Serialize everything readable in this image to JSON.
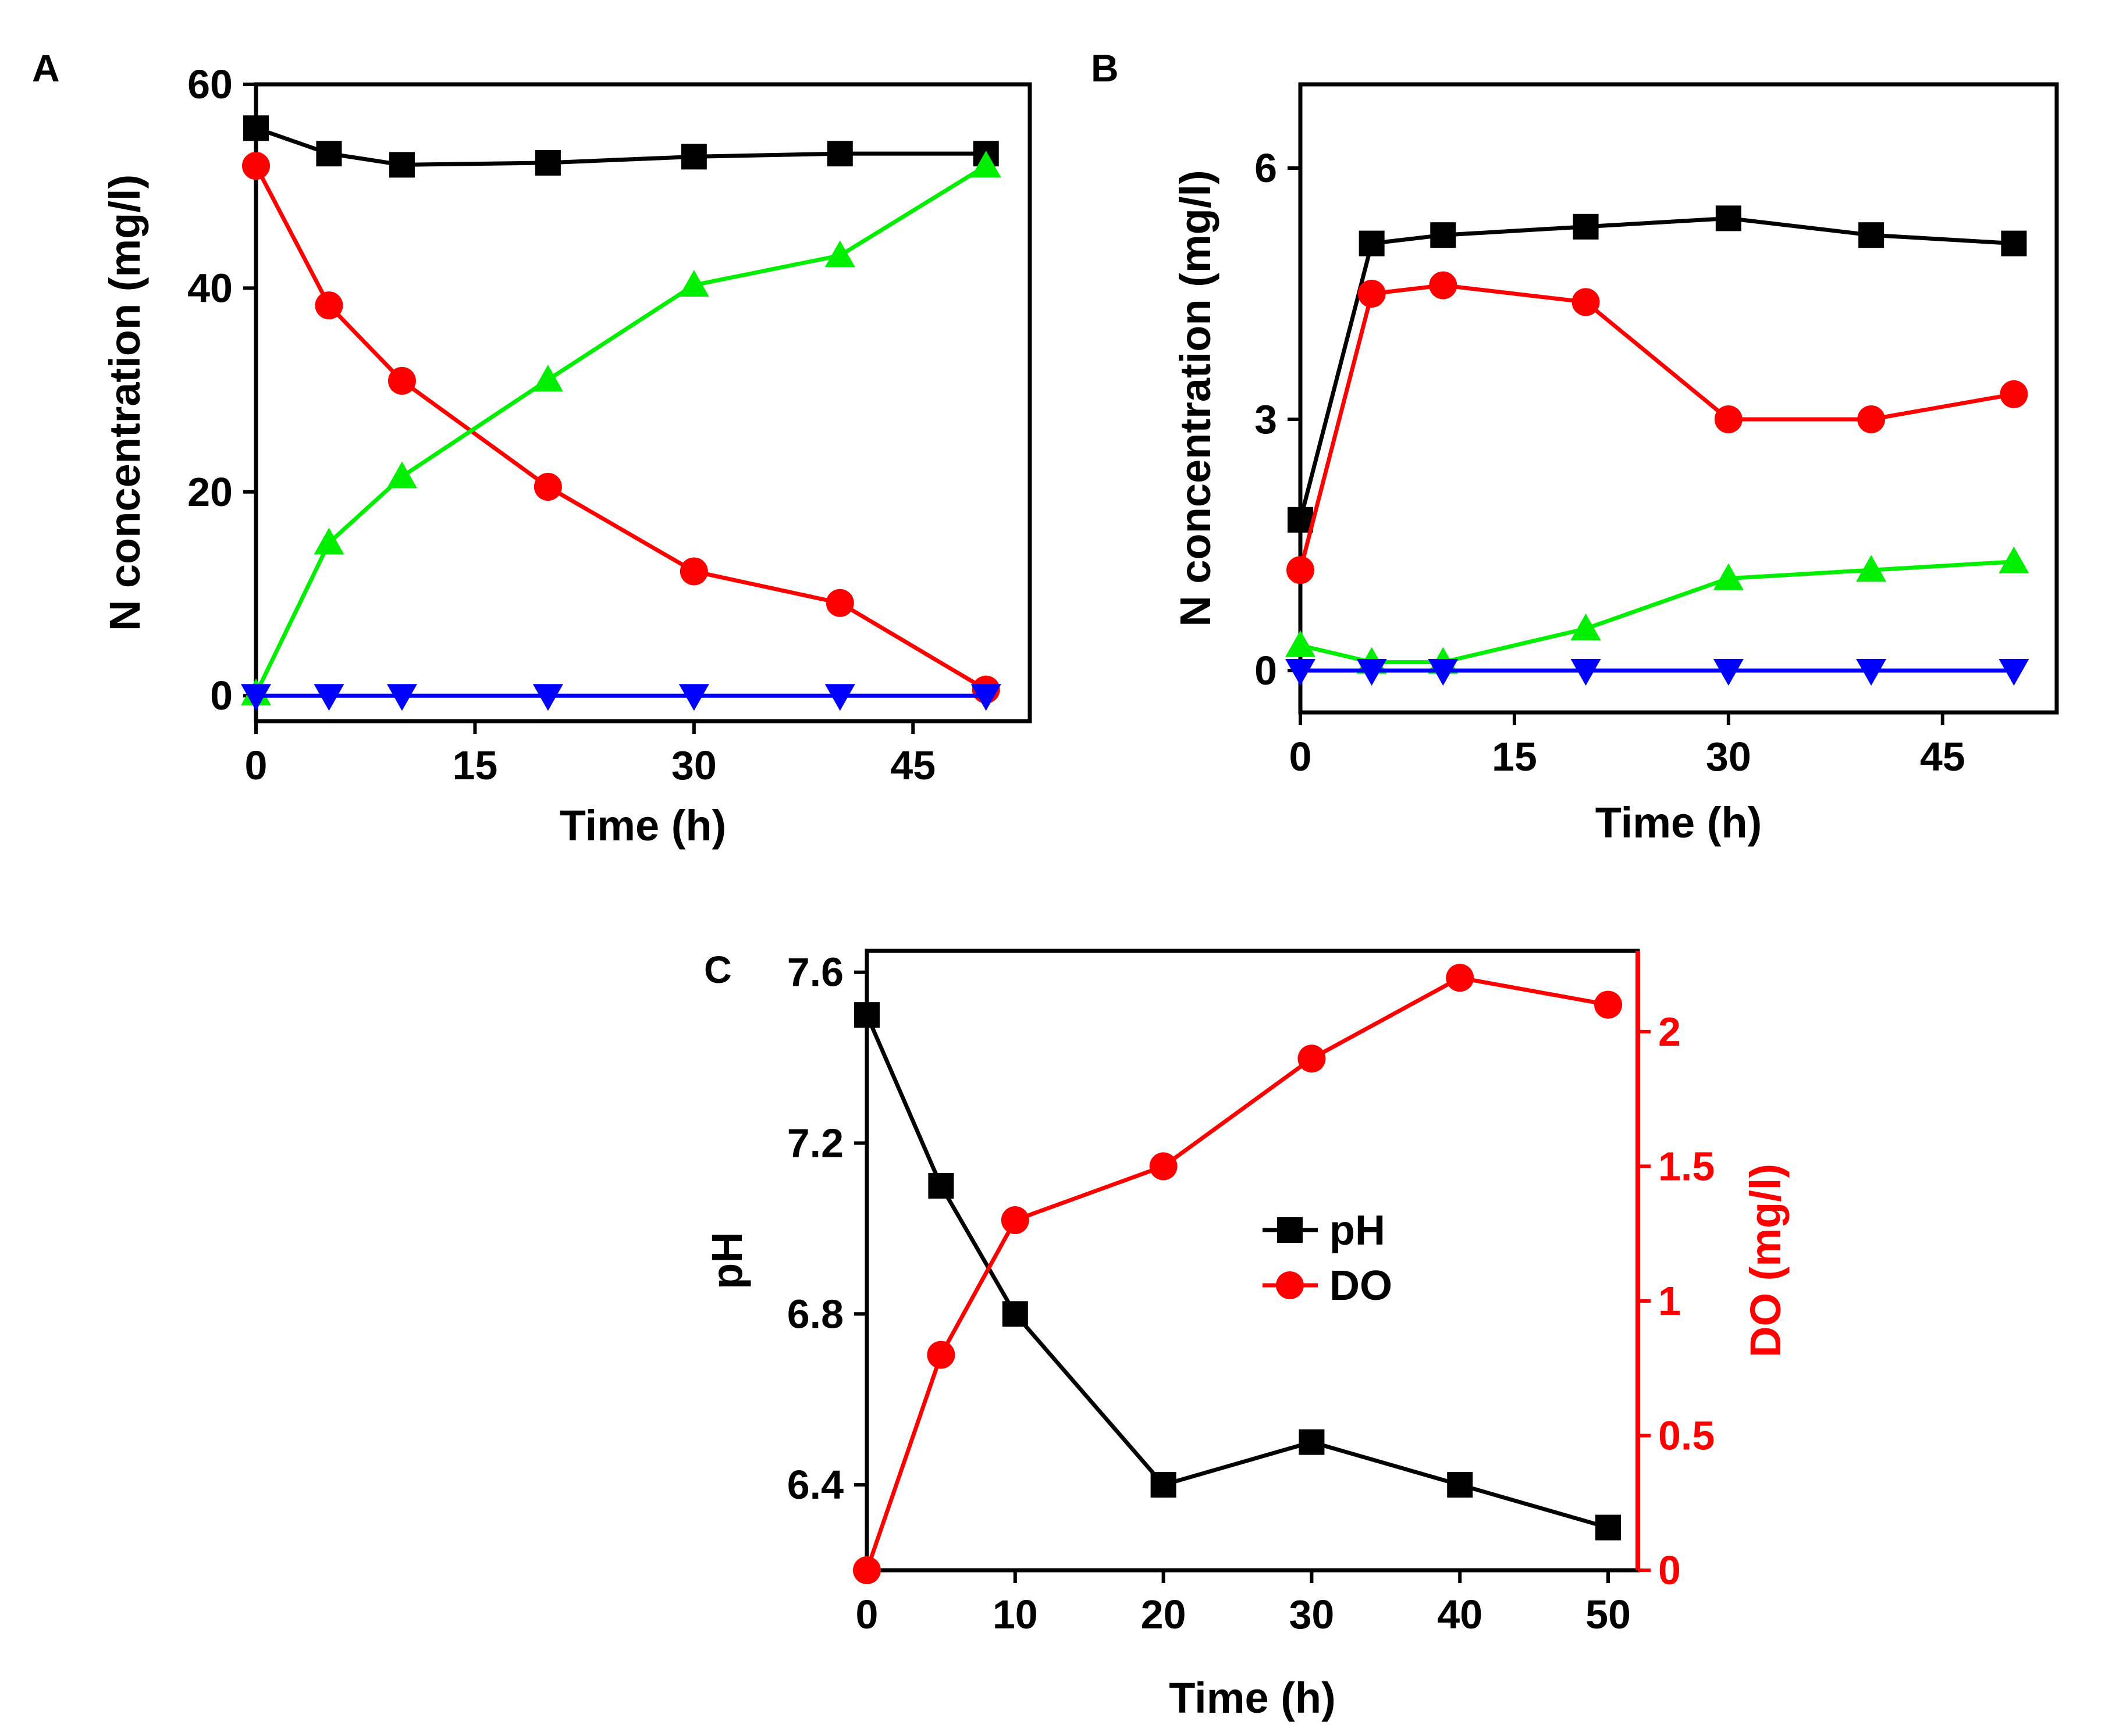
{
  "chart_data": [
    {
      "panel_label": "A",
      "type": "line",
      "xlabel": "Time (h)",
      "ylabel": "N concentration (mg/l)",
      "xlim": [
        0,
        53
      ],
      "ylim": [
        -2.5,
        60
      ],
      "xticks": [
        "0",
        "15",
        "30",
        "45"
      ],
      "yticks": [
        "0",
        "20",
        "40",
        "60"
      ],
      "x": [
        0,
        5,
        10,
        20,
        30,
        40,
        50
      ],
      "series": [
        {
          "marker": "square",
          "color": "#000000",
          "values": [
            55.7,
            53.2,
            52.1,
            52.3,
            52.9,
            53.2,
            53.2
          ]
        },
        {
          "marker": "circle",
          "color": "#ff0000",
          "values": [
            52.0,
            38.3,
            30.9,
            20.5,
            12.2,
            9.1,
            0.6
          ]
        },
        {
          "marker": "triangle-up",
          "color": "#00ee00",
          "values": [
            0.2,
            15.0,
            21.5,
            31.0,
            40.3,
            43.2,
            52.0
          ]
        },
        {
          "marker": "triangle-down",
          "color": "#0000ff",
          "values": [
            0,
            0,
            0,
            0,
            0,
            0,
            0
          ]
        }
      ],
      "grid": false
    },
    {
      "panel_label": "B",
      "type": "line",
      "xlabel": "Time (h)",
      "ylabel": "N concentration (mg/l)",
      "xlim": [
        0,
        53
      ],
      "ylim": [
        -0.5,
        7
      ],
      "xticks": [
        "0",
        "15",
        "30",
        "45"
      ],
      "yticks": [
        "0",
        "3",
        "6"
      ],
      "x": [
        0,
        5,
        10,
        20,
        30,
        40,
        50
      ],
      "series": [
        {
          "marker": "square",
          "color": "#000000",
          "values": [
            1.8,
            5.1,
            5.2,
            5.3,
            5.4,
            5.2,
            5.1
          ]
        },
        {
          "marker": "circle",
          "color": "#ff0000",
          "values": [
            1.2,
            4.5,
            4.6,
            4.4,
            3.0,
            3.0,
            3.3
          ]
        },
        {
          "marker": "triangle-up",
          "color": "#00ee00",
          "values": [
            0.3,
            0.1,
            0.1,
            0.5,
            1.1,
            1.2,
            1.3
          ]
        },
        {
          "marker": "triangle-down",
          "color": "#0000ff",
          "values": [
            0,
            0,
            0,
            0,
            0,
            0,
            0
          ]
        }
      ],
      "grid": false
    },
    {
      "panel_label": "C",
      "type": "line",
      "xlabel": "Time (h)",
      "ylabel": "pH",
      "y2label": "DO (mg/l)",
      "xlim": [
        0,
        52
      ],
      "ylim": [
        6.2,
        7.65
      ],
      "y2lim": [
        0,
        2.3
      ],
      "xticks": [
        "0",
        "10",
        "20",
        "30",
        "40",
        "50"
      ],
      "yticks": [
        "6.4",
        "6.8",
        "7.2",
        "7.6"
      ],
      "y2ticks": [
        "0",
        "0.5",
        "1",
        "1.5",
        "2"
      ],
      "x": [
        0,
        5,
        10,
        20,
        30,
        40,
        50
      ],
      "series": [
        {
          "name": "pH",
          "axis": "left",
          "marker": "square",
          "color": "#000000",
          "values": [
            7.5,
            7.1,
            6.8,
            6.4,
            6.5,
            6.4,
            6.3
          ]
        },
        {
          "name": "DO",
          "axis": "right",
          "marker": "circle",
          "color": "#ff0000",
          "values": [
            0,
            0.8,
            1.3,
            1.5,
            1.9,
            2.2,
            2.1
          ]
        }
      ],
      "legend_position": "center",
      "grid": false
    }
  ]
}
